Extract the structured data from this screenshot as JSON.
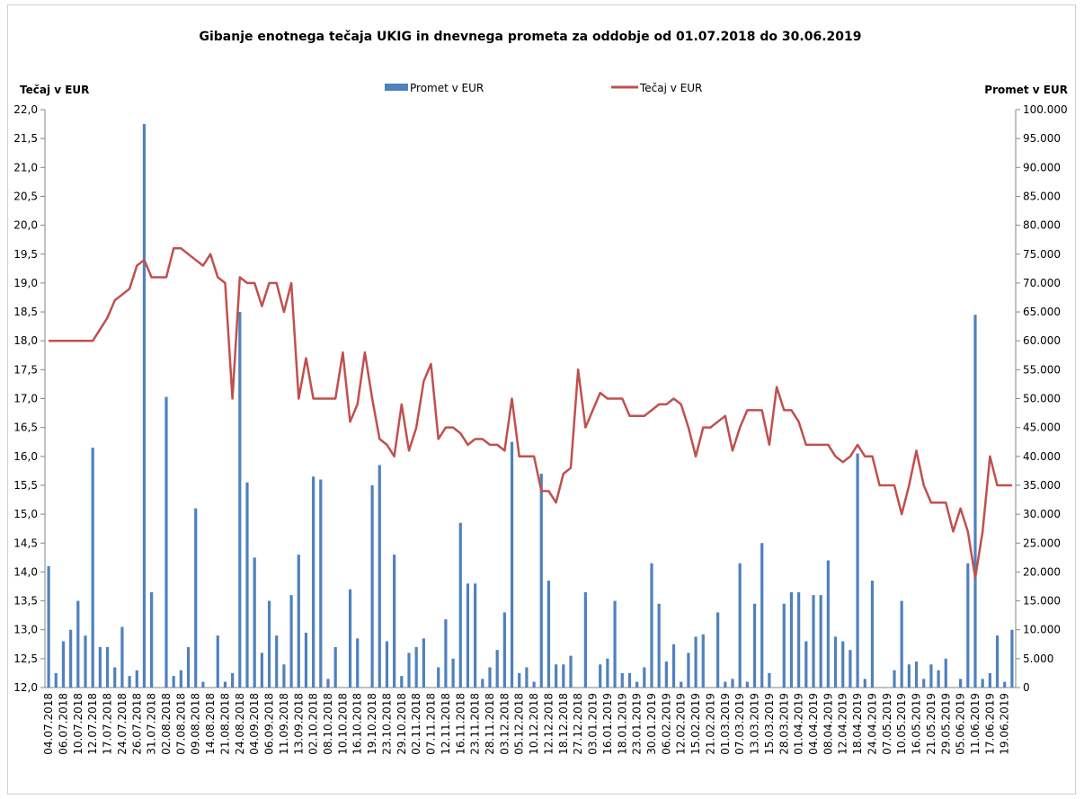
{
  "chart_data": {
    "type": "combo",
    "title": "Gibanje enotnega tečaja UKIG in dnevnega prometa za oddobje od 01.07.2018 do 30.06.2019",
    "y_label": "Tečaj v EUR",
    "y2_label": "Promet v EUR",
    "categories": [
      "04.07.2018",
      null,
      "06.07.2018",
      null,
      "10.07.2018",
      null,
      "12.07.2018",
      null,
      "17.07.2018",
      null,
      "24.07.2018",
      null,
      "26.07.2018",
      null,
      "31.07.2018",
      null,
      "02.08.2018",
      null,
      "07.08.2018",
      null,
      "09.08.2018",
      null,
      "14.08.2018",
      null,
      "21.08.2018",
      null,
      "24.08.2018",
      null,
      "04.09.2018",
      null,
      "06.09.2018",
      null,
      "11.09.2018",
      null,
      "13.09.2018",
      null,
      "02.10.2018",
      null,
      "08.10.2018",
      null,
      "10.10.2018",
      null,
      "16.10.2018",
      null,
      "19.10.2018",
      null,
      "23.10.2018",
      null,
      "29.10.2018",
      null,
      "02.11.2018",
      null,
      "07.11.2018",
      null,
      "12.11.2018",
      null,
      "16.11.2018",
      null,
      "23.11.2018",
      null,
      "28.11.2018",
      null,
      "03.12.2018",
      null,
      "05.12.2018",
      null,
      "10.12.2018",
      null,
      "12.12.2018",
      null,
      "18.12.2018",
      null,
      "27.12.2018",
      null,
      "03.01.2019",
      null,
      "16.01.2019",
      null,
      "18.01.2019",
      null,
      "23.01.2019",
      null,
      "30.01.2019",
      null,
      "06.02.2019",
      null,
      "12.02.2019",
      null,
      "15.02.2019",
      null,
      "21.02.2019",
      null,
      "01.03.2019",
      null,
      "07.03.2019",
      null,
      "13.03.2019",
      null,
      "15.03.2019",
      null,
      "28.03.2019",
      null,
      "01.04.2019",
      null,
      "04.04.2019",
      null,
      "08.04.2019",
      null,
      "12.04.2019",
      null,
      "18.04.2019",
      null,
      "24.04.2019",
      null,
      "07.05.2019",
      null,
      "10.05.2019",
      null,
      "16.05.2019",
      null,
      "21.05.2019",
      null,
      "29.05.2019",
      null,
      "05.06.2019",
      null,
      "11.06.2019",
      null,
      "17.06.2019",
      null,
      "19.06.2019",
      null
    ],
    "series": [
      {
        "name": "Promet v EUR",
        "type": "bar",
        "axis": "y2",
        "color": "#4f81bd",
        "values": [
          21000,
          2500,
          8000,
          10000,
          15000,
          9000,
          41500,
          7000,
          7000,
          3500,
          10500,
          2000,
          3000,
          97500,
          16500,
          0,
          50300,
          2000,
          3000,
          7000,
          31000,
          1000,
          0,
          9000,
          1000,
          2500,
          65000,
          35500,
          22500,
          6000,
          15000,
          9000,
          4000,
          16000,
          23000,
          9500,
          36500,
          36000,
          1500,
          7000,
          0,
          17000,
          8500,
          0,
          35000,
          38500,
          8000,
          23000,
          2000,
          6000,
          7000,
          8500,
          0,
          3500,
          11800,
          5000,
          28500,
          18000,
          18000,
          1500,
          3500,
          6500,
          13000,
          42500,
          2500,
          3500,
          1000,
          37000,
          18500,
          4000,
          4000,
          5500,
          0,
          16500,
          0,
          4000,
          5000,
          15000,
          2500,
          2500,
          1000,
          3500,
          21500,
          14500,
          4500,
          7500,
          1000,
          6000,
          8800,
          9200,
          0,
          13000,
          1000,
          1500,
          21500,
          1000,
          14500,
          25000,
          2500,
          0,
          14500,
          16500,
          16500,
          8000,
          16000,
          16000,
          22000,
          8800,
          8000,
          6500,
          40500,
          1500,
          18500,
          0,
          0,
          3000,
          15000,
          4000,
          4500,
          1500,
          4000,
          3000,
          5000,
          0,
          1500,
          21500,
          64500,
          1500,
          2500,
          9000,
          1000,
          10000
        ]
      },
      {
        "name": "Tečaj v EUR",
        "type": "line",
        "color": "#c0504d",
        "values": [
          18,
          18,
          18,
          18,
          18,
          18,
          18,
          18.2,
          18.4,
          18.7,
          18.8,
          18.9,
          19.3,
          19.4,
          19.1,
          19.1,
          19.1,
          19.6,
          19.6,
          19.5,
          19.4,
          19.3,
          19.5,
          19.1,
          19.0,
          17.0,
          19.1,
          19.0,
          19.0,
          18.6,
          19.0,
          19.0,
          18.5,
          19.0,
          17.0,
          17.7,
          17.0,
          17.0,
          17.0,
          17.0,
          17.8,
          16.6,
          16.9,
          17.8,
          17.0,
          16.3,
          16.2,
          16.0,
          16.9,
          16.1,
          16.5,
          17.3,
          17.6,
          16.3,
          16.5,
          16.5,
          16.4,
          16.2,
          16.3,
          16.3,
          16.2,
          16.2,
          16.1,
          17.0,
          16.0,
          16.0,
          16.0,
          15.4,
          15.4,
          15.2,
          15.7,
          15.8,
          17.5,
          16.5,
          16.8,
          17.1,
          17.0,
          17.0,
          17.0,
          16.7,
          16.7,
          16.7,
          16.8,
          16.9,
          16.9,
          17.0,
          16.9,
          16.5,
          16.0,
          16.5,
          16.5,
          16.6,
          16.7,
          16.1,
          16.5,
          16.8,
          16.8,
          16.8,
          16.2,
          17.2,
          16.8,
          16.8,
          16.6,
          16.2,
          16.2,
          16.2,
          16.2,
          16.0,
          15.9,
          16.0,
          16.2,
          16.0,
          16.0,
          15.5,
          15.5,
          15.5,
          15.0,
          15.5,
          16.1,
          15.5,
          15.2,
          15.2,
          15.2,
          14.7,
          15.1,
          14.7,
          13.9,
          14.7,
          16.0,
          15.5,
          15.5,
          15.5
        ]
      }
    ],
    "ylim": [
      12,
      22
    ],
    "yticks": [
      {
        "value": 12,
        "label": "12,0"
      },
      {
        "value": 12.5,
        "label": "12,5"
      },
      {
        "value": 13,
        "label": "13,0"
      },
      {
        "value": 13.5,
        "label": "13,5"
      },
      {
        "value": 14,
        "label": "14,0"
      },
      {
        "value": 14.5,
        "label": "14,5"
      },
      {
        "value": 15,
        "label": "15,0"
      },
      {
        "value": 15.5,
        "label": "15,5"
      },
      {
        "value": 16,
        "label": "16,0"
      },
      {
        "value": 16.5,
        "label": "16,5"
      },
      {
        "value": 17,
        "label": "17,0"
      },
      {
        "value": 17.5,
        "label": "17,5"
      },
      {
        "value": 18,
        "label": "18,0"
      },
      {
        "value": 18.5,
        "label": "18,5"
      },
      {
        "value": 19,
        "label": "19,0"
      },
      {
        "value": 19.5,
        "label": "19,5"
      },
      {
        "value": 20,
        "label": "20,0"
      },
      {
        "value": 20.5,
        "label": "20,5"
      },
      {
        "value": 21,
        "label": "21,0"
      },
      {
        "value": 21.5,
        "label": "21,5"
      },
      {
        "value": 22,
        "label": "22,0"
      }
    ],
    "y2lim": [
      0,
      100000
    ],
    "y2ticks": [
      0,
      {
        "value": 5000,
        "label": "5.000"
      },
      {
        "value": 10000,
        "label": "10.000"
      },
      {
        "value": 15000,
        "label": "15.000"
      },
      {
        "value": 20000,
        "label": "20.000"
      },
      {
        "value": 25000,
        "label": "25.000"
      },
      {
        "value": 30000,
        "label": "30.000"
      },
      {
        "value": 35000,
        "label": "35.000"
      },
      {
        "value": 40000,
        "label": "40.000"
      },
      {
        "value": 45000,
        "label": "45.000"
      },
      {
        "value": 50000,
        "label": "50.000"
      },
      {
        "value": 55000,
        "label": "55.000"
      },
      {
        "value": 60000,
        "label": "60.000"
      },
      {
        "value": 65000,
        "label": "65.000"
      },
      {
        "value": 70000,
        "label": "70.000"
      },
      {
        "value": 75000,
        "label": "75.000"
      },
      {
        "value": 80000,
        "label": "80.000"
      },
      {
        "value": 85000,
        "label": "85.000"
      },
      {
        "value": 90000,
        "label": "90.000"
      },
      {
        "value": 95000,
        "label": "95.000"
      },
      {
        "value": 100000,
        "label": "100.000"
      }
    ],
    "grid": false,
    "legend": "top"
  }
}
